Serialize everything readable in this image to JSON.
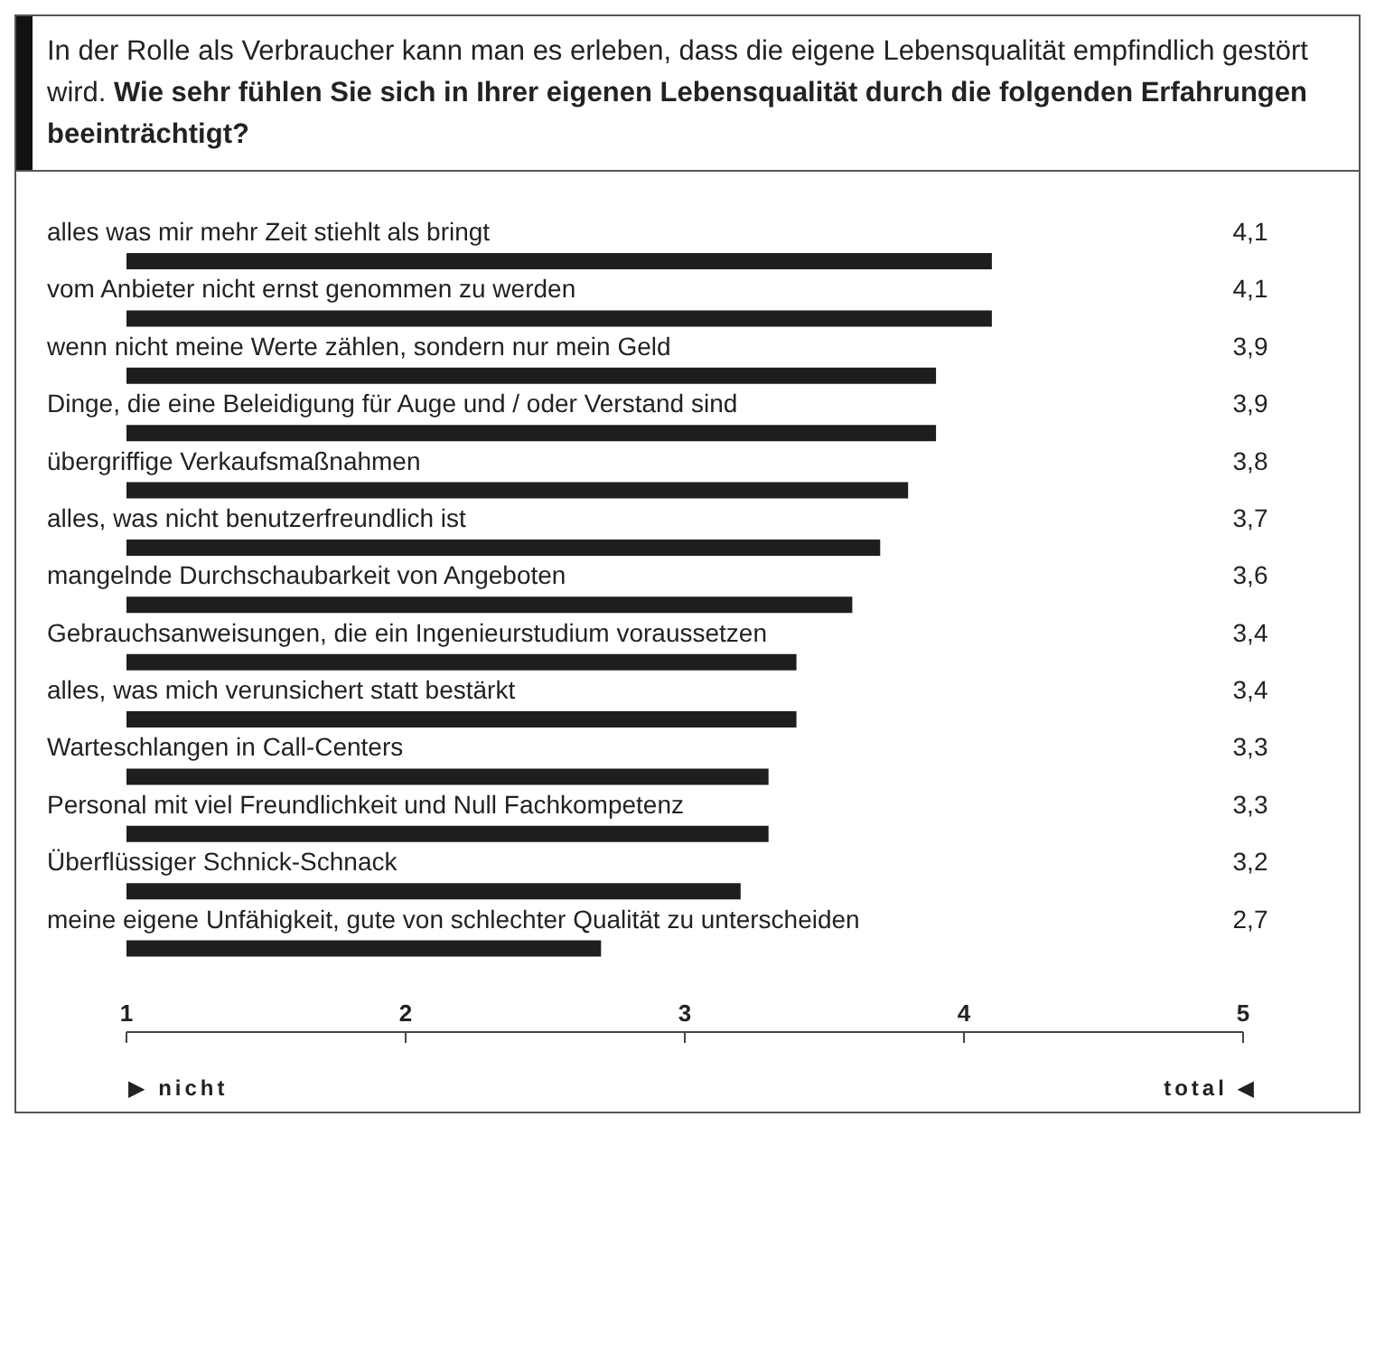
{
  "chart_data": {
    "type": "bar",
    "orientation": "horizontal",
    "title": "In der Rolle als Verbraucher kann man es erleben, dass die eigene Lebensqualität empfindlich gestört wird.",
    "subtitle": "Wie sehr fühlen Sie sich in Ihrer eigenen Lebensqualität durch die folgenden Erfahrungen beeinträchtigt?",
    "categories": [
      "alles was mir mehr Zeit stiehlt als bringt",
      "vom Anbieter nicht ernst genommen zu werden",
      "wenn nicht meine Werte zählen, sondern nur mein Geld",
      "Dinge, die eine Beleidigung für Auge und / oder Verstand sind",
      "übergriffige Verkaufsmaßnahmen",
      "alles, was nicht benutzerfreundlich ist",
      "mangelnde Durchschaubarkeit von Angeboten",
      "Gebrauchsanweisungen, die ein Ingenieurstudium voraussetzen",
      "alles, was mich verunsichert statt bestärkt",
      "Warteschlangen in Call-Centers",
      "Personal mit viel Freundlichkeit und Null Fachkompetenz",
      "Überflüssiger Schnick-Schnack",
      "meine eigene Unfähigkeit, gute von schlechter Qualität zu unterscheiden"
    ],
    "values": [
      4.1,
      4.1,
      3.9,
      3.9,
      3.8,
      3.7,
      3.6,
      3.4,
      3.4,
      3.3,
      3.3,
      3.2,
      2.7
    ],
    "value_labels": [
      "4,1",
      "4,1",
      "3,9",
      "3,9",
      "3,8",
      "3,7",
      "3,6",
      "3,4",
      "3,4",
      "3,3",
      "3,3",
      "3,2",
      "2,7"
    ],
    "color": "#1e1e1e",
    "xlim": [
      1,
      5
    ],
    "xticks": [
      1,
      2,
      3,
      4,
      5
    ],
    "grid": false,
    "legend": false,
    "annotations": [
      "▶ nicht",
      "total ◀"
    ]
  }
}
